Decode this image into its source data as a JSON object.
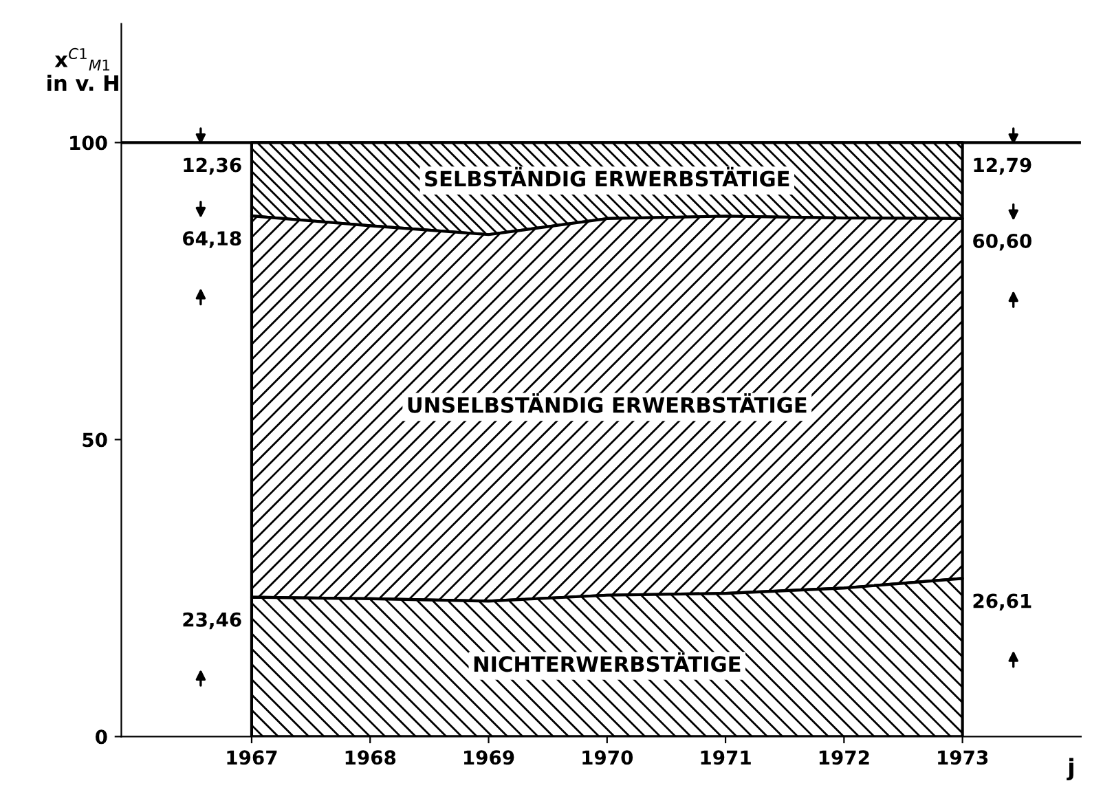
{
  "chart_data": {
    "type": "area",
    "stacked": true,
    "ylabel": "x$^{C1}$$_{M1}$\nin v. H",
    "xlabel": "j",
    "x": [
      1967,
      1968,
      1969,
      1970,
      1971,
      1972,
      1973
    ],
    "series": [
      {
        "name": "NICHTERWERBSTÄTIGE",
        "color": "#000000",
        "values": [
          23.46,
          23.2,
          22.8,
          23.8,
          24.1,
          25.0,
          26.61
        ],
        "value_labels": [
          "23,46",
          null,
          null,
          null,
          null,
          null,
          "26,61"
        ]
      },
      {
        "name": "UNSELBSTÄNDIG ERWERBSTÄTIGE",
        "color": "#000000",
        "values": [
          64.18,
          62.8,
          61.7,
          63.4,
          63.5,
          62.3,
          60.6
        ],
        "value_labels": [
          "64,18",
          null,
          null,
          null,
          null,
          null,
          "60,60"
        ]
      },
      {
        "name": "SELBSTÄNDIG ERWERBSTÄTIGE",
        "color": "#000000",
        "values": [
          12.36,
          14.0,
          15.5,
          12.8,
          12.4,
          12.7,
          12.79
        ],
        "value_labels": [
          "12,36",
          null,
          null,
          null,
          null,
          null,
          "12,79"
        ]
      }
    ],
    "xlim": [
      1965.9,
      1974.0
    ],
    "ylim": [
      0,
      120
    ],
    "xticks": [
      1967,
      1968,
      1969,
      1970,
      1971,
      1972,
      1973
    ],
    "yticks": [
      0,
      50,
      100
    ],
    "ref_lines": [
      {
        "axis": "y",
        "value": 100,
        "label": null
      }
    ],
    "grid": false,
    "legend": false
  }
}
